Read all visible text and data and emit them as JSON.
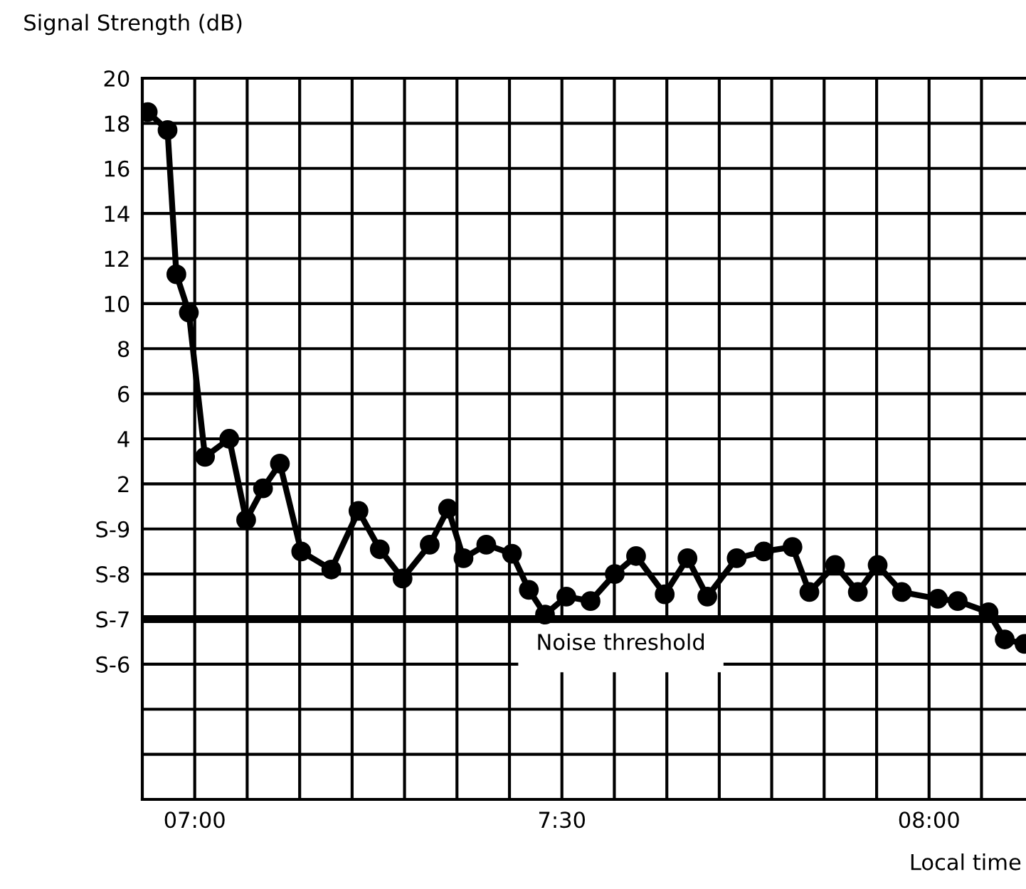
{
  "chart_data": {
    "type": "line",
    "xlabel": "Local time",
    "ylabel": "Signal Strength (dB)",
    "x": [
      6.936,
      6.963,
      6.975,
      6.992,
      7.014,
      7.047,
      7.07,
      7.093,
      7.116,
      7.145,
      7.186,
      7.223,
      7.252,
      7.283,
      7.32,
      7.345,
      7.366,
      7.397,
      7.432,
      7.455,
      7.477,
      7.506,
      7.539,
      7.572,
      7.601,
      7.64,
      7.671,
      7.698,
      7.738,
      7.775,
      7.814,
      7.837,
      7.872,
      7.903,
      7.93,
      7.963,
      8.012,
      8.039,
      8.081,
      8.103,
      8.13
    ],
    "series": [
      {
        "color": "#000000",
        "values": [
          18.5,
          17.7,
          11.3,
          9.6,
          3.2,
          4.0,
          0.4,
          1.8,
          2.9,
          -1.0,
          -1.8,
          0.8,
          -0.9,
          -2.2,
          -0.7,
          0.9,
          -1.3,
          -0.7,
          -1.1,
          -2.7,
          -3.8,
          -3.0,
          -3.2,
          -2.0,
          -1.2,
          -2.9,
          -1.3,
          -3.0,
          -1.3,
          -1.0,
          -0.8,
          -2.8,
          -1.6,
          -2.8,
          -1.6,
          -2.8,
          -3.1,
          -3.2,
          -3.7,
          -4.9,
          -5.1
        ]
      }
    ],
    "xlim": [
      6.9286,
      8.132
    ],
    "xticks": [
      {
        "value": 7.0,
        "label": "07:00"
      },
      {
        "value": 7.0714,
        "label": null
      },
      {
        "value": 7.1429,
        "label": null
      },
      {
        "value": 7.2143,
        "label": null
      },
      {
        "value": 7.2857,
        "label": null
      },
      {
        "value": 7.3571,
        "label": null
      },
      {
        "value": 7.4286,
        "label": null
      },
      {
        "value": 7.5,
        "label": "7:30"
      },
      {
        "value": 7.5714,
        "label": null
      },
      {
        "value": 7.6429,
        "label": null
      },
      {
        "value": 7.7143,
        "label": null
      },
      {
        "value": 7.7857,
        "label": null
      },
      {
        "value": 7.8571,
        "label": null
      },
      {
        "value": 7.9286,
        "label": null
      },
      {
        "value": 8.0,
        "label": "08:00"
      },
      {
        "value": 8.0714,
        "label": null
      }
    ],
    "ylim": [
      -12,
      20
    ],
    "yticks": [
      20,
      18,
      16,
      14,
      12,
      10,
      8,
      6,
      4,
      2,
      {
        "value": 0,
        "label": "S-9"
      },
      {
        "value": -2,
        "label": "S-8"
      },
      {
        "value": -4,
        "label": "S-7"
      },
      {
        "value": -6,
        "label": "S-6"
      },
      {
        "value": -8,
        "label": null
      },
      {
        "value": -10,
        "label": null
      }
    ],
    "ref_lines": [
      {
        "axis": "y",
        "value": -4,
        "label": "Noise threshold",
        "color": "#000000"
      }
    ],
    "grid": true,
    "marker": "circle",
    "line_style": "solid",
    "legend": false
  }
}
